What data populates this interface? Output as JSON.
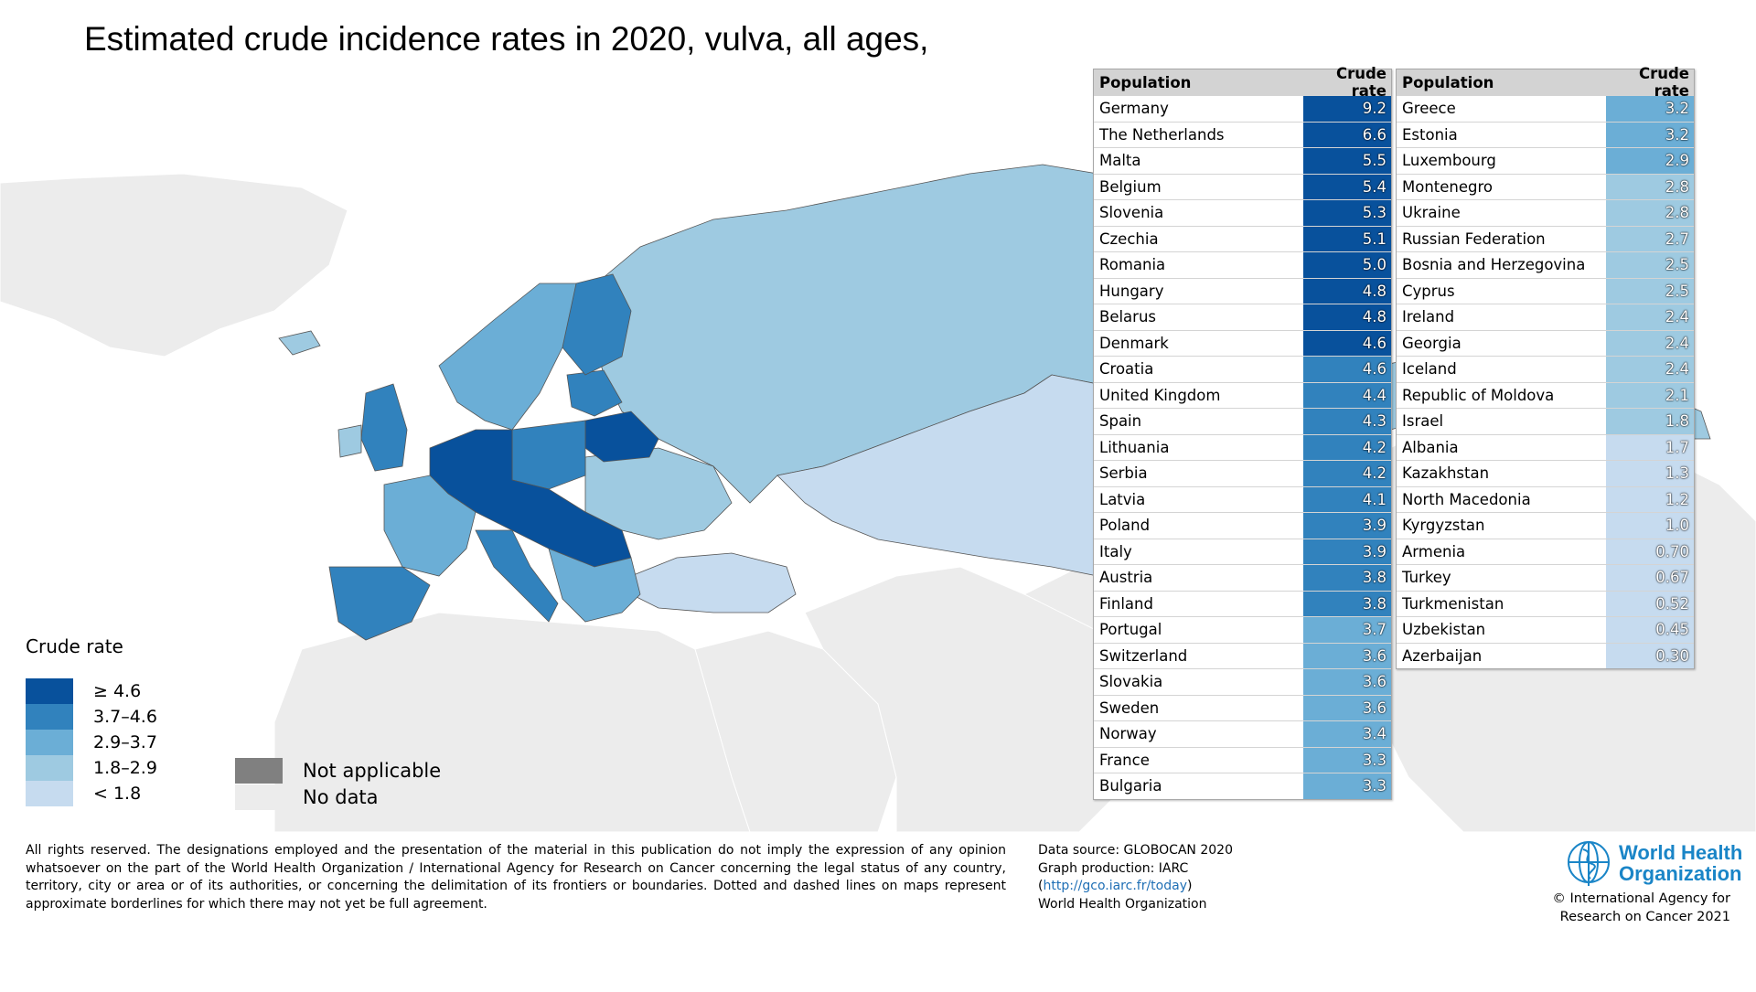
{
  "title": "Estimated crude incidence rates in 2020, vulva, all ages,",
  "table_header": {
    "population": "Population",
    "rate": "Crude rate"
  },
  "table_left": [
    {
      "population": "Germany",
      "rate": "9.2",
      "color": "#08519c"
    },
    {
      "population": "The Netherlands",
      "rate": "6.6",
      "color": "#08519c"
    },
    {
      "population": "Malta",
      "rate": "5.5",
      "color": "#08519c"
    },
    {
      "population": "Belgium",
      "rate": "5.4",
      "color": "#08519c"
    },
    {
      "population": "Slovenia",
      "rate": "5.3",
      "color": "#08519c"
    },
    {
      "population": "Czechia",
      "rate": "5.1",
      "color": "#08519c"
    },
    {
      "population": "Romania",
      "rate": "5.0",
      "color": "#08519c"
    },
    {
      "population": "Hungary",
      "rate": "4.8",
      "color": "#08519c"
    },
    {
      "population": "Belarus",
      "rate": "4.8",
      "color": "#08519c"
    },
    {
      "population": "Denmark",
      "rate": "4.6",
      "color": "#08519c"
    },
    {
      "population": "Croatia",
      "rate": "4.6",
      "color": "#3182bd"
    },
    {
      "population": "United Kingdom",
      "rate": "4.4",
      "color": "#3182bd"
    },
    {
      "population": "Spain",
      "rate": "4.3",
      "color": "#3182bd"
    },
    {
      "population": "Lithuania",
      "rate": "4.2",
      "color": "#3182bd"
    },
    {
      "population": "Serbia",
      "rate": "4.2",
      "color": "#3182bd"
    },
    {
      "population": "Latvia",
      "rate": "4.1",
      "color": "#3182bd"
    },
    {
      "population": "Poland",
      "rate": "3.9",
      "color": "#3182bd"
    },
    {
      "population": "Italy",
      "rate": "3.9",
      "color": "#3182bd"
    },
    {
      "population": "Austria",
      "rate": "3.8",
      "color": "#3182bd"
    },
    {
      "population": "Finland",
      "rate": "3.8",
      "color": "#3182bd"
    },
    {
      "population": "Portugal",
      "rate": "3.7",
      "color": "#6baed6"
    },
    {
      "population": "Switzerland",
      "rate": "3.6",
      "color": "#6baed6"
    },
    {
      "population": "Slovakia",
      "rate": "3.6",
      "color": "#6baed6"
    },
    {
      "population": "Sweden",
      "rate": "3.6",
      "color": "#6baed6"
    },
    {
      "population": "Norway",
      "rate": "3.4",
      "color": "#6baed6"
    },
    {
      "population": "France",
      "rate": "3.3",
      "color": "#6baed6"
    },
    {
      "population": "Bulgaria",
      "rate": "3.3",
      "color": "#6baed6"
    }
  ],
  "table_right": [
    {
      "population": "Greece",
      "rate": "3.2",
      "color": "#6baed6"
    },
    {
      "population": "Estonia",
      "rate": "3.2",
      "color": "#6baed6"
    },
    {
      "population": "Luxembourg",
      "rate": "2.9",
      "color": "#6baed6"
    },
    {
      "population": "Montenegro",
      "rate": "2.8",
      "color": "#9ecae1"
    },
    {
      "population": "Ukraine",
      "rate": "2.8",
      "color": "#9ecae1"
    },
    {
      "population": "Russian Federation",
      "rate": "2.7",
      "color": "#9ecae1"
    },
    {
      "population": "Bosnia and Herzegovina",
      "rate": "2.5",
      "color": "#9ecae1"
    },
    {
      "population": "Cyprus",
      "rate": "2.5",
      "color": "#9ecae1"
    },
    {
      "population": "Ireland",
      "rate": "2.4",
      "color": "#9ecae1"
    },
    {
      "population": "Georgia",
      "rate": "2.4",
      "color": "#9ecae1"
    },
    {
      "population": "Iceland",
      "rate": "2.4",
      "color": "#9ecae1"
    },
    {
      "population": "Republic of Moldova",
      "rate": "2.1",
      "color": "#9ecae1"
    },
    {
      "population": "Israel",
      "rate": "1.8",
      "color": "#9ecae1"
    },
    {
      "population": "Albania",
      "rate": "1.7",
      "color": "#c6dbef"
    },
    {
      "population": "Kazakhstan",
      "rate": "1.3",
      "color": "#c6dbef"
    },
    {
      "population": "North Macedonia",
      "rate": "1.2",
      "color": "#c6dbef"
    },
    {
      "population": "Kyrgyzstan",
      "rate": "1.0",
      "color": "#c6dbef"
    },
    {
      "population": "Armenia",
      "rate": "0.70",
      "color": "#c6dbef"
    },
    {
      "population": "Turkey",
      "rate": "0.67",
      "color": "#c6dbef"
    },
    {
      "population": "Turkmenistan",
      "rate": "0.52",
      "color": "#c6dbef"
    },
    {
      "population": "Uzbekistan",
      "rate": "0.45",
      "color": "#c6dbef"
    },
    {
      "population": "Azerbaijan",
      "rate": "0.30",
      "color": "#c6dbef"
    }
  ],
  "legend": {
    "title": "Crude rate",
    "classes": [
      {
        "label": "≥ 4.6",
        "color": "#08519c"
      },
      {
        "label": "3.7–4.6",
        "color": "#3182bd"
      },
      {
        "label": "2.9–3.7",
        "color": "#6baed6"
      },
      {
        "label": "1.8–2.9",
        "color": "#9ecae1"
      },
      {
        "label": "< 1.8",
        "color": "#c6dbef"
      }
    ],
    "not_applicable": {
      "label": "Not applicable",
      "color": "#808080"
    },
    "no_data": {
      "label": "No data",
      "color": "#ececec"
    }
  },
  "footer": {
    "disclaimer": "All rights reserved. The designations employed and the presentation of the material in this publication do not imply the expression of any opinion whatsoever on the part of the World Health Organization / International Agency for Research on Cancer concerning the legal status of any country, territory, city or area or of its authorities, or concerning the delimitation of its frontiers or boundaries. Dotted and dashed lines on maps represent approximate borderlines for which there may not yet be full agreement.",
    "source_line1": "Data source: GLOBOCAN 2020",
    "source_line2": "Graph production: IARC",
    "source_link": "http://gco.iarc.fr/today",
    "source_line4": "World Health Organization",
    "who_name_line1": "World Health",
    "who_name_line2": "Organization",
    "copyright_line1": "© International Agency for",
    "copyright_line2": "Research on Cancer 2021"
  }
}
